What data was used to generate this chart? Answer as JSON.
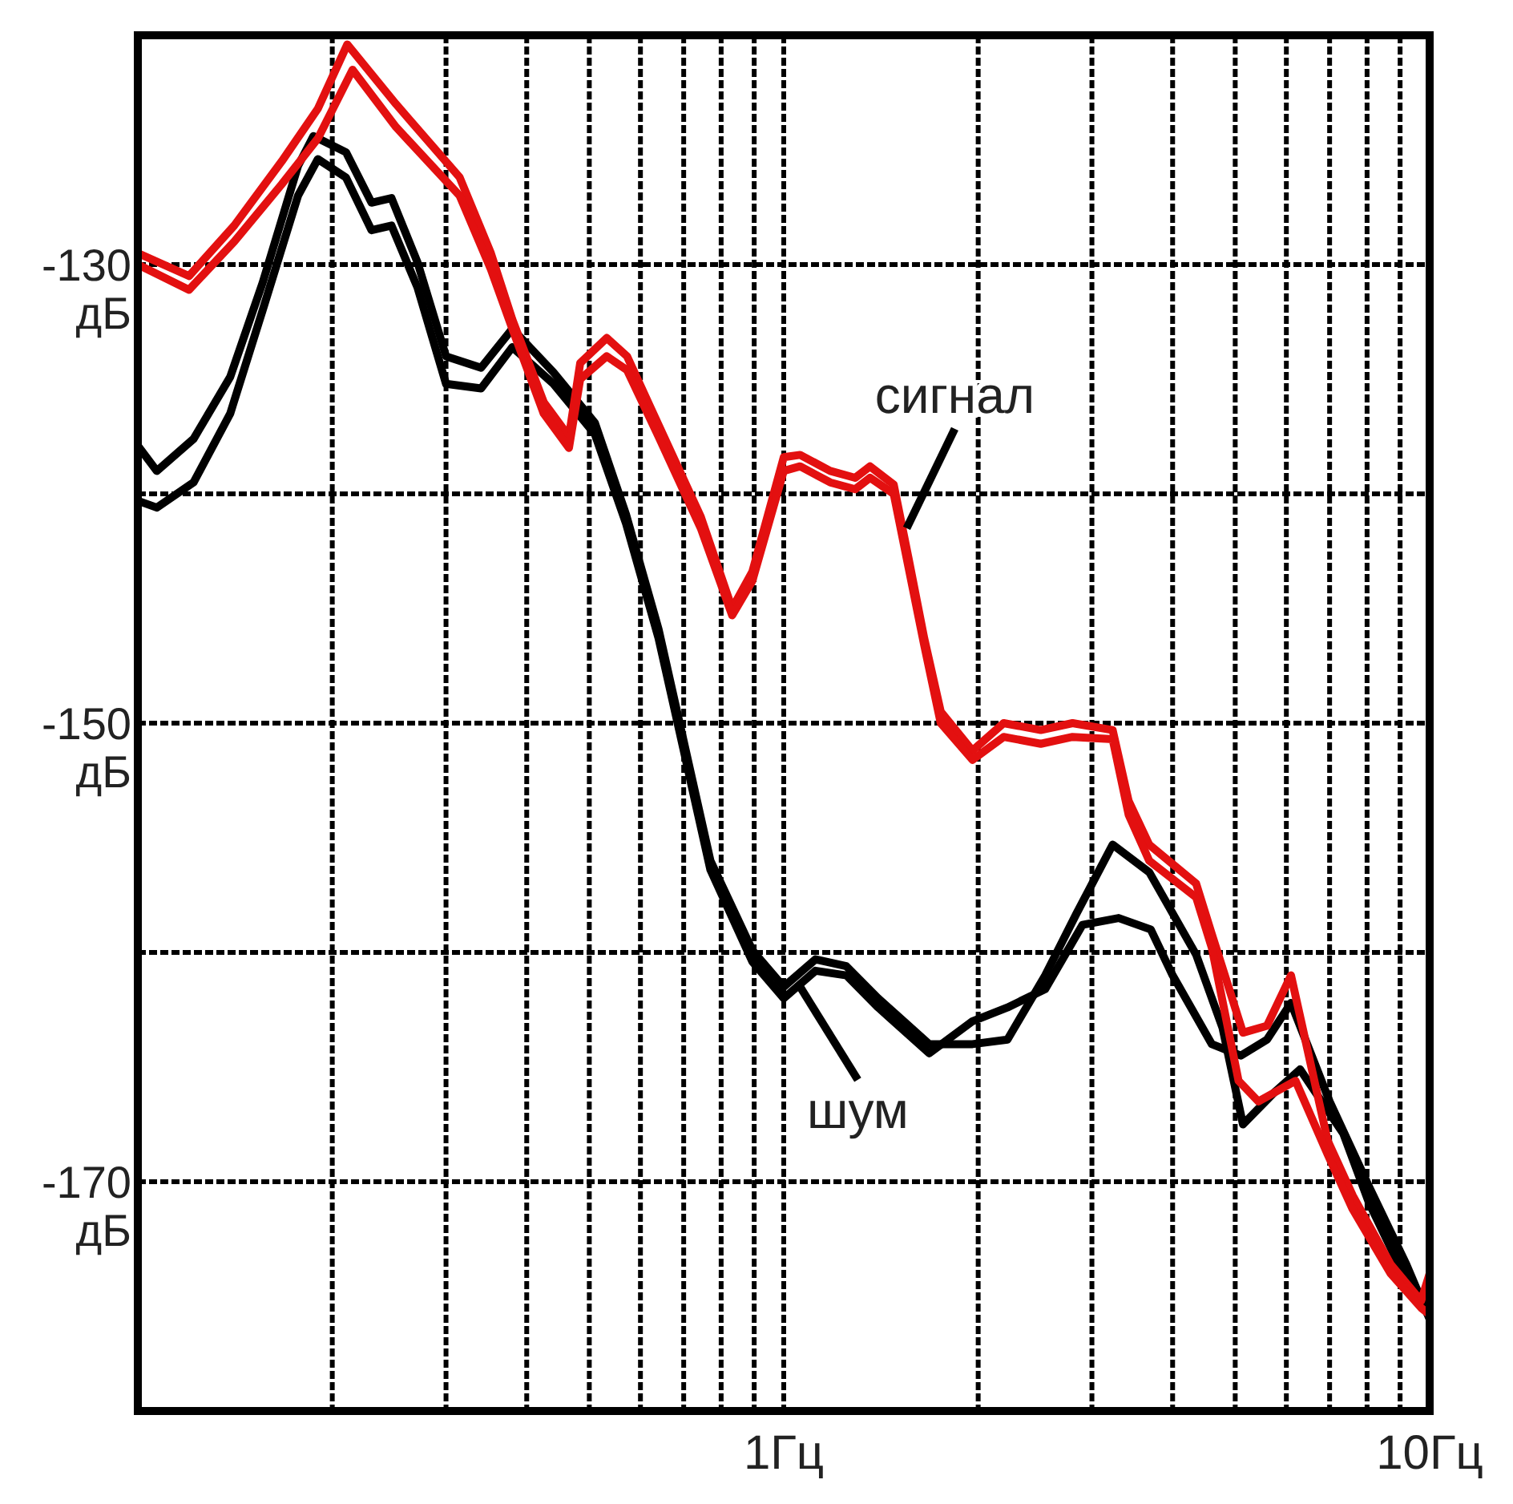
{
  "chart_data": {
    "type": "line",
    "log": "x",
    "grid": true,
    "line_style": "solid",
    "xlim": [
      0.1,
      10
    ],
    "xticks": [
      {
        "value": 0.2,
        "label": null
      },
      {
        "value": 0.3,
        "label": null
      },
      {
        "value": 0.4,
        "label": null
      },
      {
        "value": 0.5,
        "label": null
      },
      {
        "value": 0.6,
        "label": null
      },
      {
        "value": 0.7,
        "label": null
      },
      {
        "value": 0.8,
        "label": null
      },
      {
        "value": 0.9,
        "label": null
      },
      {
        "value": 1,
        "label": "1Гц"
      },
      {
        "value": 2,
        "label": null
      },
      {
        "value": 3,
        "label": null
      },
      {
        "value": 4,
        "label": null
      },
      {
        "value": 5,
        "label": null
      },
      {
        "value": 6,
        "label": null
      },
      {
        "value": 7,
        "label": null
      },
      {
        "value": 8,
        "label": null
      },
      {
        "value": 9,
        "label": null
      },
      {
        "value": 10,
        "label": "10Гц"
      }
    ],
    "ylim": [
      -180,
      -120
    ],
    "yticks": [
      {
        "value": -170,
        "label": "-170\nдБ"
      },
      {
        "value": -160,
        "label": null
      },
      {
        "value": -150,
        "label": "-150\nдБ"
      },
      {
        "value": -140,
        "label": null
      },
      {
        "value": -130,
        "label": "-130\nдБ"
      }
    ],
    "series": [
      {
        "color": "#000000",
        "x": [
          0.1,
          0.107,
          0.122,
          0.139,
          0.156,
          0.177,
          0.187,
          0.21,
          0.23,
          0.247,
          0.271,
          0.3,
          0.34,
          0.38,
          0.44,
          0.51,
          0.57,
          0.64,
          0.69,
          0.77,
          0.894,
          1.0,
          1.12,
          1.25,
          1.4,
          1.68,
          1.96,
          2.22,
          2.54,
          2.84,
          3.23,
          3.68,
          4.35,
          4.78,
          5.14,
          5.75,
          6.3,
          7.35,
          8.05,
          9.2,
          9.9,
          10
        ],
        "values": [
          -137.9,
          -139,
          -137.6,
          -134.9,
          -130.8,
          -125.7,
          -124.4,
          -125.1,
          -127.3,
          -127.1,
          -129.9,
          -134,
          -134.5,
          -132.8,
          -134.7,
          -136.9,
          -140.9,
          -145.9,
          -150,
          -156,
          -159.9,
          -161.5,
          -160.3,
          -160.6,
          -162,
          -164,
          -164,
          -163.8,
          -161,
          -158.3,
          -155.3,
          -156.5,
          -160.1,
          -163.3,
          -167.5,
          -166.1,
          -165.1,
          -167.9,
          -170.9,
          -174.3,
          -175.7,
          -175
        ]
      },
      {
        "color": "#000000",
        "x": [
          0.1,
          0.107,
          0.122,
          0.139,
          0.156,
          0.177,
          0.19,
          0.21,
          0.23,
          0.247,
          0.271,
          0.3,
          0.34,
          0.38,
          0.44,
          0.51,
          0.57,
          0.64,
          0.69,
          0.77,
          0.894,
          1.0,
          1.12,
          1.25,
          1.4,
          1.68,
          1.96,
          2.22,
          2.54,
          2.9,
          3.3,
          3.7,
          4.0,
          4.6,
          5.1,
          5.6,
          6.1,
          7.0,
          8.05,
          9.2,
          10
        ],
        "values": [
          -140.3,
          -140.6,
          -139.5,
          -136.5,
          -132,
          -127,
          -125.4,
          -126.2,
          -128.5,
          -128.3,
          -131,
          -135.2,
          -135.4,
          -133.6,
          -135.2,
          -137.4,
          -141.3,
          -146.3,
          -150.4,
          -156.4,
          -160.4,
          -162,
          -160.8,
          -161,
          -162.4,
          -164.4,
          -163,
          -162.4,
          -161.6,
          -158.8,
          -158.5,
          -159,
          -161,
          -164,
          -164.5,
          -163.8,
          -162.2,
          -166.5,
          -170.2,
          -173.6,
          -176
        ]
      },
      {
        "color": "#e31010",
        "x": [
          0.1,
          0.12,
          0.141,
          0.167,
          0.19,
          0.211,
          0.251,
          0.315,
          0.352,
          0.38,
          0.425,
          0.465,
          0.484,
          0.532,
          0.572,
          0.64,
          0.744,
          0.832,
          0.894,
          1.0,
          1.06,
          1.18,
          1.29,
          1.36,
          1.48,
          1.56,
          1.65,
          1.75,
          1.96,
          2.19,
          2.5,
          2.8,
          3.23,
          3.42,
          3.68,
          4.35,
          4.6,
          5.14,
          5.6,
          6.1,
          6.95,
          7.6,
          8.7,
          9.7,
          10
        ],
        "values": [
          -129.5,
          -130.5,
          -128.3,
          -125.5,
          -123.2,
          -120.4,
          -123,
          -126.2,
          -129.5,
          -132.4,
          -136,
          -137.5,
          -134.3,
          -133.2,
          -134,
          -137,
          -141,
          -145,
          -143.4,
          -138.4,
          -138.3,
          -139,
          -139.3,
          -138.8,
          -139.6,
          -142.8,
          -146.3,
          -149.5,
          -151.2,
          -150,
          -150.3,
          -150,
          -150.3,
          -153.4,
          -155.3,
          -157,
          -159.2,
          -163.5,
          -163.2,
          -161,
          -168.2,
          -170.6,
          -173.6,
          -175.2,
          -174
        ]
      },
      {
        "color": "#e31010",
        "x": [
          0.1,
          0.12,
          0.141,
          0.167,
          0.19,
          0.215,
          0.251,
          0.315,
          0.352,
          0.38,
          0.425,
          0.465,
          0.484,
          0.532,
          0.572,
          0.64,
          0.744,
          0.832,
          0.894,
          1.0,
          1.06,
          1.18,
          1.29,
          1.36,
          1.48,
          1.56,
          1.65,
          1.75,
          1.96,
          2.19,
          2.5,
          2.8,
          3.23,
          3.42,
          3.68,
          4.35,
          4.6,
          5.06,
          5.43,
          6.2,
          6.95,
          7.6,
          8.7,
          9.7,
          10
        ],
        "values": [
          -130,
          -131.1,
          -129,
          -126.5,
          -124.5,
          -121.5,
          -124,
          -127,
          -130.2,
          -132.8,
          -136.5,
          -138,
          -135,
          -134,
          -134.6,
          -137.5,
          -141.5,
          -145.3,
          -143.8,
          -139,
          -138.8,
          -139.5,
          -139.8,
          -139.3,
          -140,
          -143.2,
          -146.6,
          -150,
          -151.6,
          -150.6,
          -150.9,
          -150.6,
          -150.7,
          -154,
          -156,
          -157.6,
          -159.8,
          -165.6,
          -166.5,
          -165.6,
          -168.8,
          -171.2,
          -174,
          -175.5,
          -175.8
        ]
      }
    ],
    "annotations": [
      {
        "text": "сигнал",
        "x": 1.55,
        "y": -141.5
      },
      {
        "text": "шум",
        "x": 1.06,
        "y": -161.5
      }
    ]
  }
}
